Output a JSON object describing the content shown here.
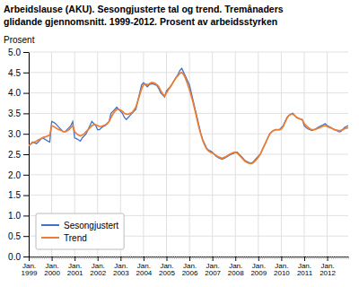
{
  "chart_data": {
    "type": "line",
    "title": "Arbeidslause (AKU). Sesongjusterte tal og trend. Tremånaders",
    "subtitle": "glidande gjennomsnitt. 1999-2012. Prosent av arbeidsstyrken",
    "ylabel": "Prosent",
    "categories": [
      "Jan.\n1999",
      null,
      null,
      null,
      null,
      null,
      null,
      null,
      null,
      null,
      null,
      null,
      "Jan.\n2000",
      null,
      null,
      null,
      null,
      null,
      null,
      null,
      null,
      null,
      null,
      null,
      "Jan.\n2001",
      null,
      null,
      null,
      null,
      null,
      null,
      null,
      null,
      null,
      null,
      null,
      "Jan.\n2002",
      null,
      null,
      null,
      null,
      null,
      null,
      null,
      null,
      null,
      null,
      null,
      "Jan.\n2003",
      null,
      null,
      null,
      null,
      null,
      null,
      null,
      null,
      null,
      null,
      null,
      "Jan.\n2004",
      null,
      null,
      null,
      null,
      null,
      null,
      null,
      null,
      null,
      null,
      null,
      "Jan.\n2005",
      null,
      null,
      null,
      null,
      null,
      null,
      null,
      null,
      null,
      null,
      null,
      "Jan.\n2006",
      null,
      null,
      null,
      null,
      null,
      null,
      null,
      null,
      null,
      null,
      null,
      "Jan.\n2007",
      null,
      null,
      null,
      null,
      null,
      null,
      null,
      null,
      null,
      null,
      null,
      "Jan.\n2008",
      null,
      null,
      null,
      null,
      null,
      null,
      null,
      null,
      null,
      null,
      null,
      "Jan.\n2009",
      null,
      null,
      null,
      null,
      null,
      null,
      null,
      null,
      null,
      null,
      null,
      "Jan.\n2010",
      null,
      null,
      null,
      null,
      null,
      null,
      null,
      null,
      null,
      null,
      null,
      "Jan.\n2011",
      null,
      null,
      null,
      null,
      null,
      null,
      null,
      null,
      null,
      null,
      null,
      "Jan.\n2012",
      null,
      null,
      null,
      null,
      null,
      null,
      null,
      null,
      null,
      null,
      null
    ],
    "series": [
      {
        "name": "Sesongjustert",
        "color": "#4472C4",
        "values": [
          2.7,
          2.75,
          2.8,
          2.78,
          2.76,
          2.8,
          2.85,
          2.9,
          2.88,
          2.85,
          2.82,
          2.8,
          3.3,
          3.28,
          3.25,
          3.2,
          3.15,
          3.1,
          3.05,
          3.05,
          3.1,
          3.15,
          3.2,
          3.3,
          2.9,
          2.88,
          2.85,
          2.82,
          2.9,
          2.95,
          3.0,
          3.1,
          3.2,
          3.3,
          3.25,
          3.2,
          3.1,
          3.1,
          3.15,
          3.18,
          3.2,
          3.25,
          3.3,
          3.5,
          3.55,
          3.6,
          3.65,
          3.6,
          3.55,
          3.5,
          3.4,
          3.35,
          3.4,
          3.45,
          3.5,
          3.55,
          3.6,
          3.8,
          4.0,
          4.2,
          4.25,
          4.2,
          4.15,
          4.2,
          4.22,
          4.22,
          4.2,
          4.18,
          4.1,
          4.0,
          3.95,
          3.9,
          4.05,
          4.1,
          4.15,
          4.22,
          4.3,
          4.38,
          4.45,
          4.55,
          4.6,
          4.5,
          4.4,
          4.3,
          4.2,
          4.0,
          3.8,
          3.6,
          3.4,
          3.2,
          3.0,
          2.85,
          2.75,
          2.65,
          2.6,
          2.58,
          2.55,
          2.5,
          2.45,
          2.42,
          2.4,
          2.38,
          2.4,
          2.42,
          2.45,
          2.48,
          2.5,
          2.52,
          2.55,
          2.55,
          2.5,
          2.45,
          2.4,
          2.35,
          2.32,
          2.3,
          2.28,
          2.3,
          2.35,
          2.4,
          2.45,
          2.5,
          2.6,
          2.7,
          2.8,
          2.9,
          3.0,
          3.05,
          3.08,
          3.1,
          3.1,
          3.1,
          3.15,
          3.2,
          3.3,
          3.4,
          3.45,
          3.48,
          3.5,
          3.45,
          3.4,
          3.38,
          3.36,
          3.35,
          3.2,
          3.15,
          3.12,
          3.1,
          3.08,
          3.1,
          3.12,
          3.15,
          3.18,
          3.2,
          3.22,
          3.25,
          3.2,
          3.18,
          3.15,
          3.12,
          3.1,
          3.08,
          3.05,
          3.05,
          3.1,
          3.15,
          3.18,
          3.2
        ]
      },
      {
        "name": "Trend",
        "color": "#ED7D31",
        "values": [
          2.72,
          2.75,
          2.78,
          2.8,
          2.82,
          2.85,
          2.87,
          2.9,
          2.92,
          2.93,
          2.95,
          2.97,
          3.2,
          3.18,
          3.15,
          3.12,
          3.1,
          3.08,
          3.06,
          3.05,
          3.07,
          3.1,
          3.15,
          3.2,
          3.05,
          3.0,
          2.97,
          2.95,
          2.97,
          3.0,
          3.05,
          3.1,
          3.15,
          3.2,
          3.22,
          3.22,
          3.2,
          3.18,
          3.18,
          3.2,
          3.22,
          3.25,
          3.3,
          3.4,
          3.48,
          3.55,
          3.6,
          3.6,
          3.58,
          3.55,
          3.5,
          3.48,
          3.48,
          3.5,
          3.52,
          3.58,
          3.65,
          3.8,
          3.95,
          4.1,
          4.2,
          4.22,
          4.2,
          4.22,
          4.25,
          4.25,
          4.23,
          4.2,
          4.15,
          4.05,
          3.98,
          3.92,
          4.0,
          4.08,
          4.15,
          4.22,
          4.3,
          4.37,
          4.42,
          4.48,
          4.5,
          4.45,
          4.35,
          4.22,
          4.08,
          3.92,
          3.75,
          3.55,
          3.35,
          3.15,
          2.98,
          2.83,
          2.72,
          2.63,
          2.58,
          2.55,
          2.53,
          2.5,
          2.47,
          2.44,
          2.42,
          2.4,
          2.42,
          2.44,
          2.47,
          2.5,
          2.52,
          2.54,
          2.55,
          2.53,
          2.48,
          2.43,
          2.38,
          2.33,
          2.3,
          2.28,
          2.27,
          2.28,
          2.32,
          2.37,
          2.43,
          2.5,
          2.6,
          2.7,
          2.8,
          2.9,
          3.0,
          3.05,
          3.08,
          3.1,
          3.1,
          3.1,
          3.12,
          3.18,
          3.28,
          3.38,
          3.45,
          3.48,
          3.48,
          3.45,
          3.4,
          3.38,
          3.36,
          3.34,
          3.25,
          3.2,
          3.16,
          3.12,
          3.1,
          3.1,
          3.11,
          3.13,
          3.15,
          3.17,
          3.19,
          3.2,
          3.18,
          3.16,
          3.14,
          3.12,
          3.1,
          3.09,
          3.08,
          3.08,
          3.1,
          3.12,
          3.14,
          3.15
        ]
      }
    ],
    "ylim": [
      0.0,
      5.0
    ],
    "yticks": [
      {
        "value": 0.0,
        "label": "0.0"
      },
      0.5,
      {
        "value": 1.0,
        "label": "1.0"
      },
      1.5,
      {
        "value": 2.0,
        "label": "2.0"
      },
      2.5,
      {
        "value": 3.0,
        "label": "3.0"
      },
      3.5,
      {
        "value": 4.0,
        "label": "4.0"
      },
      4.5,
      {
        "value": 5.0,
        "label": "5.0"
      }
    ],
    "grid": true,
    "legend": "lower left"
  }
}
